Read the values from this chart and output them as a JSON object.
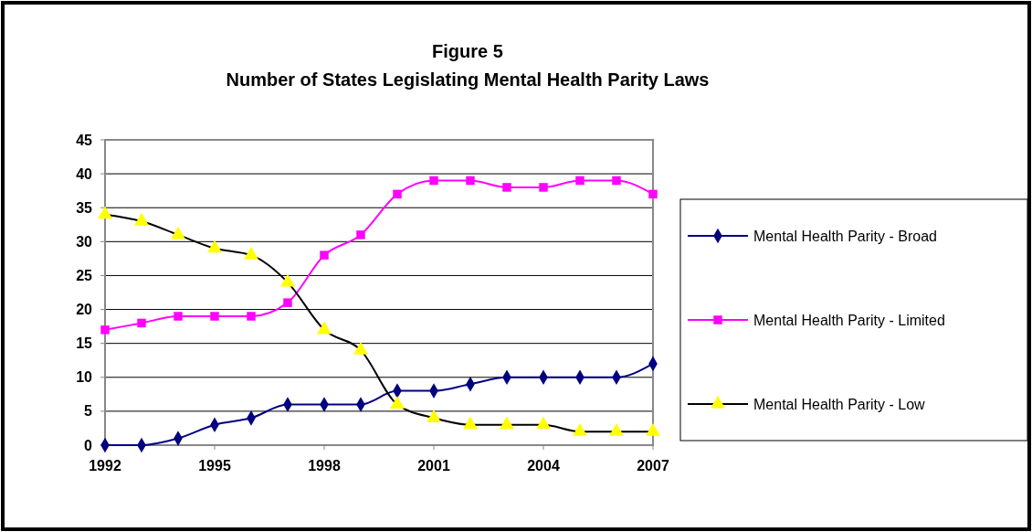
{
  "chart_data": {
    "type": "line",
    "title": "Figure 5",
    "subtitle": "Number of States Legislating Mental Health Parity Laws",
    "x": [
      1992,
      1993,
      1994,
      1995,
      1996,
      1997,
      1998,
      1999,
      2000,
      2001,
      2002,
      2003,
      2004,
      2005,
      2006,
      2007
    ],
    "xlim": [
      1992,
      2007
    ],
    "xticks": [
      1992,
      1995,
      1998,
      2001,
      2004,
      2007
    ],
    "ylim": [
      0,
      45
    ],
    "yticks": [
      0,
      5,
      10,
      15,
      20,
      25,
      30,
      35,
      40,
      45
    ],
    "grid": "y",
    "legend": "right",
    "series": [
      {
        "name": "Mental Health Parity - Broad",
        "color": "#000080",
        "marker": "diamond",
        "values": [
          0,
          0,
          1,
          3,
          4,
          6,
          6,
          6,
          8,
          8,
          9,
          10,
          10,
          10,
          10,
          12
        ]
      },
      {
        "name": "Mental Health Parity - Limited",
        "color": "#ff00ff",
        "marker": "square",
        "values": [
          17,
          18,
          19,
          19,
          19,
          21,
          28,
          31,
          37,
          39,
          39,
          38,
          38,
          39,
          39,
          37
        ]
      },
      {
        "name": "Mental Health Parity - Low",
        "color": "#000000",
        "colors": [
          "#ffff00",
          "#ffff00",
          "#ffff00",
          "#ffff00",
          "#ffff00",
          "#ffff00",
          "#ffff00",
          "#ffff00",
          "#ffff00",
          "#ffff00",
          "#ffff00",
          "#ffff00",
          "#ffff00",
          "#ffff00",
          "#ffff00",
          "#ffff00"
        ],
        "marker": "triangle",
        "values": [
          34,
          33,
          31,
          29,
          28,
          24,
          17,
          14,
          6,
          4,
          3,
          3,
          3,
          2,
          2,
          2
        ]
      }
    ]
  }
}
